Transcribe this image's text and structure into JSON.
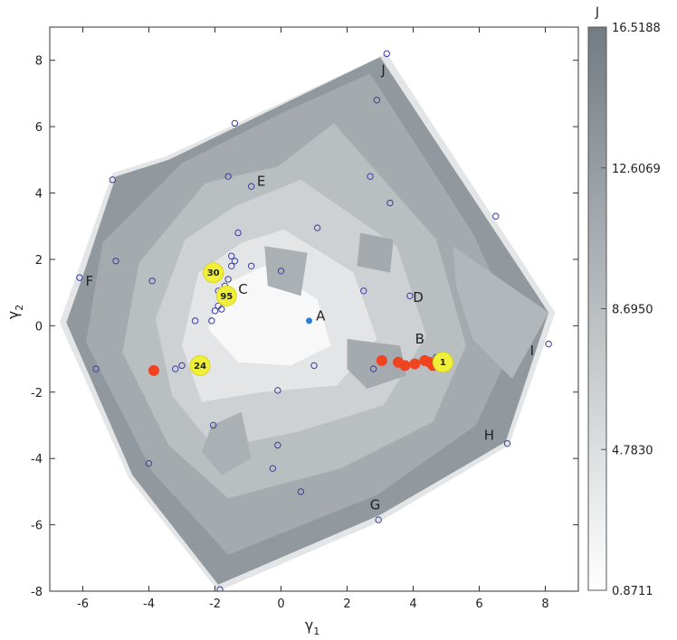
{
  "chart_data": {
    "type": "scatter",
    "xlabel": "γ1",
    "ylabel": "γ2",
    "xlim": [
      -7,
      9
    ],
    "ylim": [
      -8,
      9
    ],
    "xticks": [
      -6,
      -4,
      -2,
      0,
      2,
      4,
      6,
      8
    ],
    "yticks": [
      -8,
      -6,
      -4,
      -2,
      0,
      2,
      4,
      6,
      8
    ],
    "grid": false,
    "colorbar": {
      "label": "J",
      "ticks": [
        "16.5188",
        "12.6069",
        "8.6950",
        "4.7830",
        "0.8711"
      ],
      "min": 0.8711,
      "max": 16.5188,
      "colors": {
        "low": "#ffffff",
        "high": "#737c83"
      }
    },
    "hull": [
      [
        3.2,
        8.2
      ],
      [
        8.3,
        0.4
      ],
      [
        6.9,
        -3.6
      ],
      [
        3.0,
        -5.9
      ],
      [
        -1.9,
        -8.0
      ],
      [
        -4.6,
        -4.6
      ],
      [
        -6.7,
        0.1
      ],
      [
        -6.2,
        1.5
      ],
      [
        -5.1,
        4.6
      ],
      [
        -3.5,
        5.1
      ]
    ],
    "contour_levels": [
      {
        "level": 0.17,
        "points": [
          [
            3.0,
            8.1
          ],
          [
            8.1,
            0.4
          ],
          [
            6.8,
            -3.5
          ],
          [
            3.0,
            -5.7
          ],
          [
            -1.9,
            -7.8
          ],
          [
            -4.5,
            -4.5
          ],
          [
            -6.5,
            0.1
          ],
          [
            -6.0,
            1.5
          ],
          [
            -5.0,
            4.5
          ],
          [
            -3.4,
            5.0
          ]
        ]
      },
      {
        "level": 0.3,
        "points": [
          [
            2.7,
            7.6
          ],
          [
            5.8,
            2.8
          ],
          [
            7.2,
            -0.2
          ],
          [
            5.9,
            -3.0
          ],
          [
            2.9,
            -5.1
          ],
          [
            -1.6,
            -6.9
          ],
          [
            -3.9,
            -4.4
          ],
          [
            -5.9,
            -0.5
          ],
          [
            -5.4,
            2.5
          ],
          [
            -3.0,
            4.9
          ],
          [
            0.0,
            6.4
          ]
        ]
      },
      {
        "level": 0.45,
        "points": [
          [
            1.6,
            6.1
          ],
          [
            4.7,
            2.6
          ],
          [
            5.6,
            -0.6
          ],
          [
            4.6,
            -2.9
          ],
          [
            1.8,
            -4.3
          ],
          [
            -1.6,
            -5.2
          ],
          [
            -3.4,
            -3.6
          ],
          [
            -4.8,
            -0.8
          ],
          [
            -4.3,
            1.9
          ],
          [
            -2.3,
            4.3
          ],
          [
            -0.1,
            4.8
          ]
        ]
      },
      {
        "level": 0.6,
        "points": [
          [
            0.6,
            4.4
          ],
          [
            3.5,
            2.4
          ],
          [
            4.4,
            -0.3
          ],
          [
            3.1,
            -2.4
          ],
          [
            0.5,
            -3.2
          ],
          [
            -2.0,
            -3.7
          ],
          [
            -3.3,
            -2.1
          ],
          [
            -3.8,
            0.2
          ],
          [
            -2.9,
            2.6
          ],
          [
            -1.4,
            3.6
          ]
        ]
      },
      {
        "level": 0.75,
        "points": [
          [
            0.1,
            2.9
          ],
          [
            2.2,
            1.6
          ],
          [
            2.9,
            -0.4
          ],
          [
            1.7,
            -1.8
          ],
          [
            -0.6,
            -2.0
          ],
          [
            -2.4,
            -2.3
          ],
          [
            -3.0,
            -0.6
          ],
          [
            -2.5,
            1.6
          ],
          [
            -1.2,
            2.5
          ]
        ]
      },
      {
        "level": 0.9,
        "points": [
          [
            -0.5,
            1.8
          ],
          [
            1.1,
            0.8
          ],
          [
            1.5,
            -0.6
          ],
          [
            0.3,
            -1.2
          ],
          [
            -1.3,
            -1.1
          ],
          [
            -2.2,
            -0.1
          ],
          [
            -1.8,
            1.2
          ]
        ]
      }
    ],
    "darker_regions": [
      {
        "level": 0.4,
        "points": [
          [
            5.2,
            2.4
          ],
          [
            8.1,
            0.4
          ],
          [
            7.0,
            -1.6
          ],
          [
            5.8,
            -0.4
          ],
          [
            5.3,
            1.2
          ]
        ]
      },
      {
        "level": 0.35,
        "points": [
          [
            -2.1,
            -3.0
          ],
          [
            -1.2,
            -2.6
          ],
          [
            -0.9,
            -4.0
          ],
          [
            -1.8,
            -4.5
          ],
          [
            -2.4,
            -3.8
          ]
        ]
      },
      {
        "level": 0.35,
        "points": [
          [
            -0.5,
            2.4
          ],
          [
            0.8,
            2.2
          ],
          [
            0.6,
            0.9
          ],
          [
            -0.4,
            1.2
          ]
        ]
      },
      {
        "level": 0.3,
        "points": [
          [
            2.4,
            2.8
          ],
          [
            3.4,
            2.6
          ],
          [
            3.3,
            1.6
          ],
          [
            2.3,
            1.8
          ]
        ]
      },
      {
        "level": 0.3,
        "points": [
          [
            2.0,
            -0.4
          ],
          [
            3.6,
            -0.6
          ],
          [
            3.8,
            -1.5
          ],
          [
            2.6,
            -1.9
          ],
          [
            2.0,
            -1.3
          ]
        ]
      }
    ],
    "open_points": [
      [
        3.2,
        8.2
      ],
      [
        2.9,
        6.8
      ],
      [
        -1.4,
        6.1
      ],
      [
        -5.1,
        4.4
      ],
      [
        -1.6,
        4.5
      ],
      [
        -0.9,
        4.2
      ],
      [
        2.7,
        4.5
      ],
      [
        3.3,
        3.7
      ],
      [
        6.5,
        3.3
      ],
      [
        1.1,
        2.95
      ],
      [
        -1.3,
        2.8
      ],
      [
        -5.0,
        1.95
      ],
      [
        -1.5,
        2.1
      ],
      [
        -1.4,
        1.95
      ],
      [
        -1.5,
        1.8
      ],
      [
        -0.9,
        1.8
      ],
      [
        0.0,
        1.65
      ],
      [
        -6.1,
        1.45
      ],
      [
        -3.9,
        1.35
      ],
      [
        -1.6,
        1.4
      ],
      [
        -1.7,
        1.2
      ],
      [
        -1.9,
        1.05
      ],
      [
        -1.85,
        0.85
      ],
      [
        -1.9,
        0.6
      ],
      [
        -2.0,
        0.45
      ],
      [
        -1.8,
        0.5
      ],
      [
        2.5,
        1.05
      ],
      [
        3.9,
        0.9
      ],
      [
        -2.6,
        0.15
      ],
      [
        -2.1,
        0.15
      ],
      [
        4.7,
        -0.95
      ],
      [
        8.1,
        -0.55
      ],
      [
        -5.6,
        -1.3
      ],
      [
        -3.0,
        -1.2
      ],
      [
        -3.2,
        -1.3
      ],
      [
        -2.3,
        -1.2
      ],
      [
        1.0,
        -1.2
      ],
      [
        2.8,
        -1.3
      ],
      [
        -0.1,
        -1.95
      ],
      [
        -2.05,
        -3.0
      ],
      [
        -0.1,
        -3.6
      ],
      [
        6.85,
        -3.55
      ],
      [
        -4.0,
        -4.15
      ],
      [
        -0.25,
        -4.3
      ],
      [
        0.6,
        -5.0
      ],
      [
        2.95,
        -5.85
      ],
      [
        -1.85,
        -7.95
      ]
    ],
    "red_points": [
      [
        -3.85,
        -1.35
      ],
      [
        3.05,
        -1.05
      ],
      [
        3.55,
        -1.1
      ],
      [
        3.75,
        -1.2
      ],
      [
        4.05,
        -1.15
      ],
      [
        4.35,
        -1.05
      ],
      [
        4.5,
        -1.1
      ],
      [
        4.6,
        -1.2
      ],
      [
        4.7,
        -1.1
      ]
    ],
    "blue_point": [
      0.85,
      0.15
    ],
    "highlighted": [
      {
        "label": "30",
        "x": -2.05,
        "y": 1.6
      },
      {
        "label": "95",
        "x": -1.65,
        "y": 0.9
      },
      {
        "label": "24",
        "x": -2.45,
        "y": -1.2
      },
      {
        "label": "1",
        "x": 4.9,
        "y": -1.1
      }
    ],
    "annotations": [
      {
        "label": "A",
        "x": 1.2,
        "y": 0.3
      },
      {
        "label": "B",
        "x": 4.2,
        "y": -0.4
      },
      {
        "label": "C",
        "x": -1.15,
        "y": 1.1
      },
      {
        "label": "D",
        "x": 4.15,
        "y": 0.85
      },
      {
        "label": "E",
        "x": -0.6,
        "y": 4.35
      },
      {
        "label": "F",
        "x": -5.8,
        "y": 1.35
      },
      {
        "label": "G",
        "x": 2.85,
        "y": -5.4
      },
      {
        "label": "H",
        "x": 6.3,
        "y": -3.3
      },
      {
        "label": "I",
        "x": 7.6,
        "y": -0.75
      },
      {
        "label": "J",
        "x": 3.1,
        "y": 7.7
      }
    ]
  }
}
